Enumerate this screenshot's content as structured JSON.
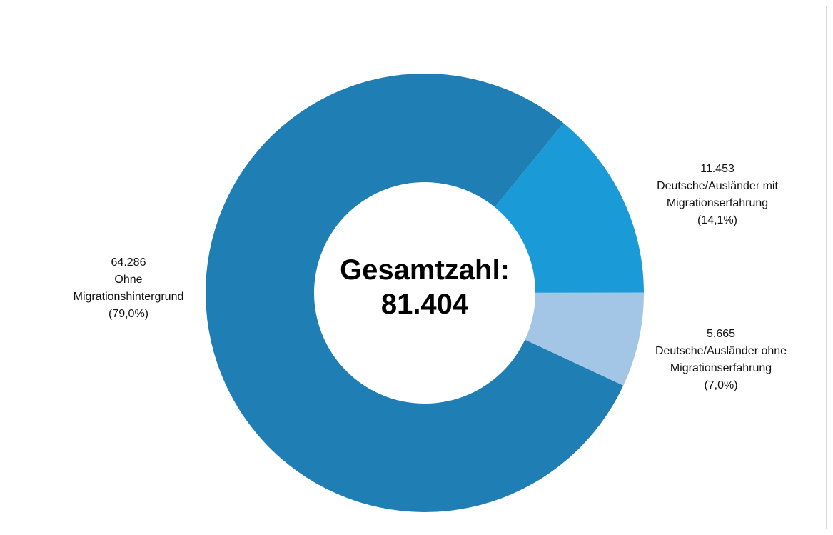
{
  "chart_data": {
    "type": "pie",
    "categories": [
      "Ohne\nMigrationshintergrund",
      "Deutsche/Ausländer mit\nMigrationserfahrung",
      "Deutsche/Ausländer ohne\nMigrationserfahrung"
    ],
    "values": [
      64286,
      11453,
      5665
    ],
    "value_labels": [
      "64.286",
      "11.453",
      "5.665"
    ],
    "percent_labels": [
      "(79,0%)",
      "(14,1%)",
      "(7,0%)"
    ],
    "colors": [
      "#1f7eb3",
      "#1a9bd7",
      "#a3c5e6"
    ],
    "center_label": "Gesamtzahl:",
    "total": 81404,
    "total_label": "81.404"
  }
}
